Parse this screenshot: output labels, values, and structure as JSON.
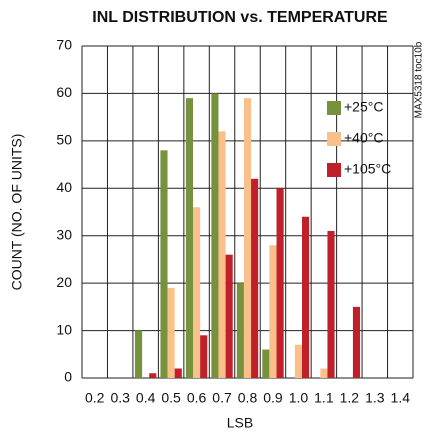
{
  "chart_data": {
    "type": "bar",
    "title": "INL DISTRIBUTION vs. TEMPERATURE",
    "x_label": "LSB",
    "y_label": "COUNT (NO. OF UNITS)",
    "annotation": "MAX5318 toc10b",
    "categories": [
      "0.2",
      "0.3",
      "0.4",
      "0.5",
      "0.6",
      "0.7",
      "0.8",
      "0.9",
      "1.0",
      "1.1",
      "1.2",
      "1.3",
      "1.4"
    ],
    "series": [
      {
        "name": "+25°C",
        "color": "#76923c",
        "values": [
          0,
          0,
          10,
          48,
          59,
          60,
          20,
          6,
          0,
          0,
          0,
          0,
          0
        ]
      },
      {
        "name": "+40°C",
        "color": "#f9c08c",
        "values": [
          0,
          0,
          0,
          19,
          36,
          52,
          59,
          28,
          7,
          2,
          0,
          0,
          0
        ]
      },
      {
        "name": "+105°C",
        "color": "#c0202a",
        "values": [
          0,
          0,
          1,
          2,
          9,
          26,
          42,
          40,
          34,
          31,
          15,
          0,
          0
        ]
      }
    ],
    "ylim": [
      0,
      70
    ],
    "yticks": [
      0,
      10,
      20,
      30,
      40,
      50,
      60,
      70
    ],
    "grid": true,
    "legend": "upper right"
  }
}
